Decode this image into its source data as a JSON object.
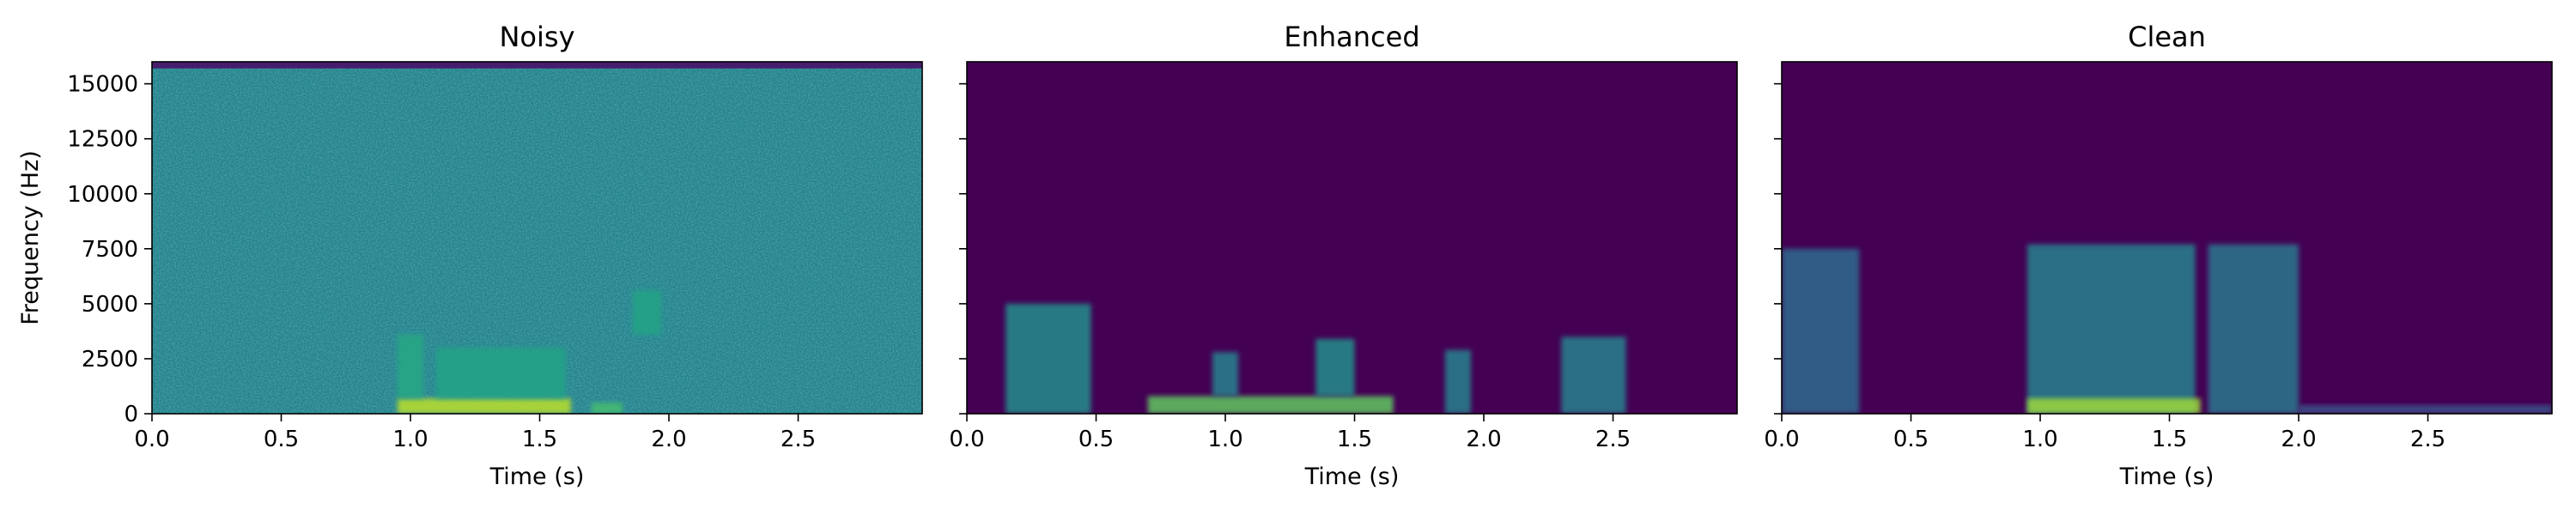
{
  "chart_data": [
    {
      "type": "heatmap",
      "title": "Noisy",
      "xlabel": "Time (s)",
      "ylabel": "Frequency (Hz)",
      "xlim": [
        0,
        2.98
      ],
      "ylim": [
        0,
        16000
      ],
      "x_ticks": [
        "0.0",
        "0.5",
        "1.0",
        "1.5",
        "2.0",
        "2.5"
      ],
      "y_ticks": [
        "0",
        "2500",
        "5000",
        "7500",
        "10000",
        "12500",
        "15000"
      ],
      "colormap": "viridis",
      "background_energy": 0.45,
      "top_band_hz": 15700,
      "energy_regions": [
        {
          "t0": 0.95,
          "t1": 1.62,
          "f0": 0,
          "f1": 700,
          "level": 0.9
        },
        {
          "t0": 0.95,
          "t1": 1.05,
          "f0": 700,
          "f1": 3600,
          "level": 0.6
        },
        {
          "t0": 1.1,
          "t1": 1.6,
          "f0": 700,
          "f1": 3000,
          "level": 0.58
        },
        {
          "t0": 1.7,
          "t1": 1.82,
          "f0": 0,
          "f1": 500,
          "level": 0.7
        },
        {
          "t0": 1.86,
          "t1": 1.97,
          "f0": 3600,
          "f1": 5600,
          "level": 0.58
        }
      ]
    },
    {
      "type": "heatmap",
      "title": "Enhanced",
      "xlabel": "Time (s)",
      "ylabel": "",
      "xlim": [
        0,
        2.98
      ],
      "ylim": [
        0,
        16000
      ],
      "x_ticks": [
        "0.0",
        "0.5",
        "1.0",
        "1.5",
        "2.0",
        "2.5"
      ],
      "y_ticks": [],
      "colormap": "viridis",
      "background_energy": 0.0,
      "top_band_hz": null,
      "energy_regions": [
        {
          "t0": 0.15,
          "t1": 0.48,
          "f0": 0,
          "f1": 5000,
          "level": 0.5
        },
        {
          "t0": 0.7,
          "t1": 1.65,
          "f0": 0,
          "f1": 800,
          "level": 0.75
        },
        {
          "t0": 1.35,
          "t1": 1.5,
          "f0": 800,
          "f1": 3400,
          "level": 0.5
        },
        {
          "t0": 0.95,
          "t1": 1.05,
          "f0": 800,
          "f1": 2800,
          "level": 0.45
        },
        {
          "t0": 1.85,
          "t1": 1.95,
          "f0": 0,
          "f1": 2900,
          "level": 0.45
        },
        {
          "t0": 2.3,
          "t1": 2.55,
          "f0": 0,
          "f1": 3500,
          "level": 0.45
        }
      ]
    },
    {
      "type": "heatmap",
      "title": "Clean",
      "xlabel": "Time (s)",
      "ylabel": "",
      "xlim": [
        0,
        2.98
      ],
      "ylim": [
        0,
        16000
      ],
      "x_ticks": [
        "0.0",
        "0.5",
        "1.0",
        "1.5",
        "2.0",
        "2.5"
      ],
      "y_ticks": [],
      "colormap": "viridis",
      "background_energy": 0.0,
      "top_band_hz": null,
      "energy_regions": [
        {
          "t0": 0.0,
          "t1": 0.3,
          "f0": 0,
          "f1": 7500,
          "level": 0.35
        },
        {
          "t0": 0.95,
          "t1": 1.6,
          "f0": 0,
          "f1": 7700,
          "level": 0.45
        },
        {
          "t0": 0.95,
          "t1": 1.62,
          "f0": 0,
          "f1": 700,
          "level": 0.85
        },
        {
          "t0": 1.65,
          "t1": 2.0,
          "f0": 0,
          "f1": 7700,
          "level": 0.4
        },
        {
          "t0": 2.0,
          "t1": 2.98,
          "f0": 0,
          "f1": 400,
          "level": 0.25
        }
      ]
    }
  ]
}
